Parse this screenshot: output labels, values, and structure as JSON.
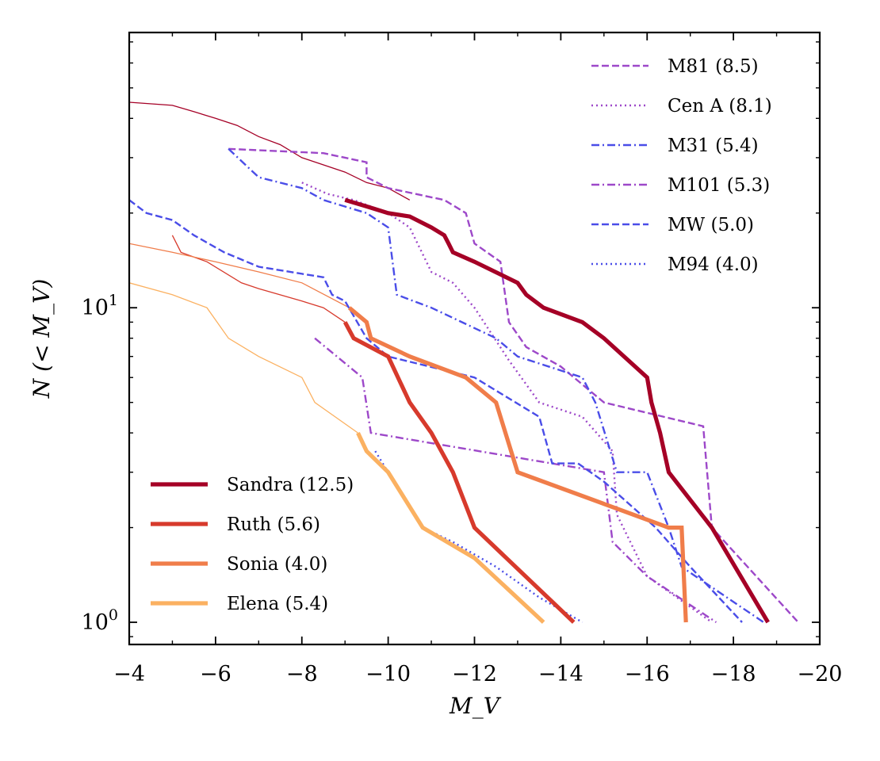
{
  "chart_data": {
    "type": "line",
    "xlabel": "M_V",
    "ylabel": "N (< M_V)",
    "x_reversed": true,
    "xlim": [
      -4,
      -20
    ],
    "y_scale": "log",
    "ylim": [
      0.85,
      75
    ],
    "x_ticks": [
      {
        "value": -4,
        "label": "−4"
      },
      {
        "value": -6,
        "label": "−6"
      },
      {
        "value": -8,
        "label": "−8"
      },
      {
        "value": -10,
        "label": "−10"
      },
      {
        "value": -12,
        "label": "−12"
      },
      {
        "value": -14,
        "label": "−14"
      },
      {
        "value": -16,
        "label": "−16"
      },
      {
        "value": -18,
        "label": "−18"
      },
      {
        "value": -20,
        "label": "−20"
      }
    ],
    "y_ticks": [
      {
        "value": 1,
        "label": "10",
        "exp": "0"
      },
      {
        "value": 10,
        "label": "10",
        "exp": "1"
      }
    ],
    "grid": false,
    "legends": [
      {
        "placement": "top-right",
        "entries": [
          "M81 (8.5)",
          "Cen A (8.1)",
          "M31 (5.4)",
          "M101 (5.3)",
          "MW (5.0)",
          "M94 (4.0)"
        ]
      },
      {
        "placement": "bottom-left",
        "entries": [
          "Sandra (12.5)",
          "Ruth (5.6)",
          "Sonia (4.0)",
          "Elena (5.4)"
        ]
      }
    ],
    "series": [
      {
        "name": "M81 (8.5)",
        "color": "#9d48c9",
        "dash": "dashed",
        "width": "thin",
        "points": [
          [
            -6.3,
            32
          ],
          [
            -8.5,
            31
          ],
          [
            -9.5,
            29
          ],
          [
            -9.5,
            26
          ],
          [
            -10,
            24
          ],
          [
            -11.3,
            22
          ],
          [
            -11.8,
            20
          ],
          [
            -12,
            16
          ],
          [
            -12.6,
            14
          ],
          [
            -12.8,
            9
          ],
          [
            -13.2,
            7.5
          ],
          [
            -14,
            6.5
          ],
          [
            -15,
            5
          ],
          [
            -17.3,
            4.2
          ],
          [
            -17.5,
            2
          ],
          [
            -19.5,
            1
          ]
        ]
      },
      {
        "name": "Cen A (8.1)",
        "color": "#9d48c9",
        "dash": "dotted",
        "width": "thin",
        "points": [
          [
            -8,
            25
          ],
          [
            -8.6,
            23
          ],
          [
            -9.2,
            22
          ],
          [
            -10,
            20
          ],
          [
            -10.5,
            18
          ],
          [
            -11,
            13
          ],
          [
            -11.5,
            12
          ],
          [
            -12,
            10
          ],
          [
            -12.8,
            6.8
          ],
          [
            -13.5,
            5
          ],
          [
            -14.5,
            4.5
          ],
          [
            -15.2,
            3.5
          ],
          [
            -15.3,
            2.2
          ],
          [
            -16,
            1.4
          ],
          [
            -17.5,
            1
          ]
        ]
      },
      {
        "name": "M31 (5.4)",
        "color": "#4a4de8",
        "dash": "dashdot",
        "width": "thin",
        "points": [
          [
            -6.3,
            32
          ],
          [
            -7,
            26
          ],
          [
            -8,
            24
          ],
          [
            -8.5,
            22
          ],
          [
            -9.5,
            20
          ],
          [
            -10,
            18
          ],
          [
            -10.2,
            11
          ],
          [
            -11,
            10
          ],
          [
            -12.5,
            8
          ],
          [
            -13,
            7
          ],
          [
            -14.5,
            6
          ],
          [
            -14.8,
            5
          ],
          [
            -15.3,
            3
          ],
          [
            -16,
            3
          ],
          [
            -16.5,
            2
          ],
          [
            -16.8,
            1.5
          ],
          [
            -18.7,
            1
          ]
        ]
      },
      {
        "name": "M101 (5.3)",
        "color": "#9d48c9",
        "dash": "dashdot",
        "width": "thin",
        "points": [
          [
            -8.3,
            8
          ],
          [
            -9.4,
            6
          ],
          [
            -9.6,
            4
          ],
          [
            -15,
            3
          ],
          [
            -15.2,
            1.8
          ],
          [
            -16,
            1.4
          ],
          [
            -17.6,
            1
          ]
        ]
      },
      {
        "name": "MW (5.0)",
        "color": "#4a4de8",
        "dash": "dashed",
        "width": "thin",
        "points": [
          [
            -4,
            22
          ],
          [
            -4.4,
            20
          ],
          [
            -5,
            19
          ],
          [
            -5.5,
            17
          ],
          [
            -6.2,
            15
          ],
          [
            -7,
            13.5
          ],
          [
            -8.5,
            12.5
          ],
          [
            -8.7,
            11
          ],
          [
            -9,
            10.5
          ],
          [
            -9.5,
            8
          ],
          [
            -10,
            7
          ],
          [
            -12,
            6
          ],
          [
            -13.5,
            4.5
          ],
          [
            -13.8,
            3.2
          ],
          [
            -14.4,
            3.2
          ],
          [
            -15,
            2.8
          ],
          [
            -16.2,
            2
          ],
          [
            -17,
            1.5
          ],
          [
            -18.2,
            1
          ]
        ]
      },
      {
        "name": "M94 (4.0)",
        "color": "#4a4de8",
        "dash": "dotted",
        "width": "thin",
        "points": [
          [
            -9.7,
            3.5
          ],
          [
            -10,
            3
          ],
          [
            -10.8,
            2
          ],
          [
            -11.5,
            1.8
          ],
          [
            -12.5,
            1.5
          ],
          [
            -13.5,
            1.2
          ],
          [
            -14.5,
            1
          ]
        ]
      },
      {
        "name": "Sandra (12.5)",
        "color": "#a50026",
        "dash": "solid",
        "width": "thick",
        "points": [
          [
            -9,
            22
          ],
          [
            -9.5,
            21
          ],
          [
            -10,
            20
          ],
          [
            -10.5,
            19.5
          ],
          [
            -11,
            18
          ],
          [
            -11.3,
            17
          ],
          [
            -11.4,
            16
          ],
          [
            -11.5,
            15
          ],
          [
            -12,
            14
          ],
          [
            -13,
            12
          ],
          [
            -13.2,
            11
          ],
          [
            -13.6,
            10
          ],
          [
            -14.5,
            9
          ],
          [
            -15,
            8
          ],
          [
            -16,
            6
          ],
          [
            -16.1,
            5
          ],
          [
            -16.3,
            4
          ],
          [
            -16.5,
            3
          ],
          [
            -17.5,
            2
          ],
          [
            -18.8,
            1
          ]
        ]
      },
      {
        "name": "Ruth (5.6)",
        "color": "#d73a2c",
        "dash": "solid",
        "width": "thick",
        "points": [
          [
            -9,
            9
          ],
          [
            -9.2,
            8
          ],
          [
            -10,
            7
          ],
          [
            -10.5,
            5
          ],
          [
            -11,
            4
          ],
          [
            -11.5,
            3
          ],
          [
            -12,
            2
          ],
          [
            -14.3,
            1
          ]
        ]
      },
      {
        "name": "Sonia (4.0)",
        "color": "#f07d4a",
        "dash": "solid",
        "width": "thick",
        "points": [
          [
            -9.1,
            10
          ],
          [
            -9.5,
            9
          ],
          [
            -9.6,
            8
          ],
          [
            -10.5,
            7
          ],
          [
            -11.8,
            6
          ],
          [
            -12.5,
            5
          ],
          [
            -13,
            3
          ],
          [
            -16.5,
            2
          ],
          [
            -16.8,
            2
          ],
          [
            -16.9,
            1
          ]
        ]
      },
      {
        "name": "Elena (5.4)",
        "color": "#fbb161",
        "dash": "solid",
        "width": "thick",
        "points": [
          [
            -9.3,
            4
          ],
          [
            -9.5,
            3.5
          ],
          [
            -10,
            3
          ],
          [
            -10.8,
            2
          ],
          [
            -12,
            1.6
          ],
          [
            -13.6,
            1
          ]
        ]
      },
      {
        "name": "",
        "color": "#a50026",
        "dash": "solid",
        "width": "hairline",
        "points": [
          [
            -4,
            45
          ],
          [
            -5,
            44
          ],
          [
            -5.5,
            42
          ],
          [
            -6,
            40
          ],
          [
            -6.5,
            38
          ],
          [
            -7,
            35
          ],
          [
            -7.5,
            33
          ],
          [
            -8,
            30
          ],
          [
            -9,
            27
          ],
          [
            -9.5,
            25
          ],
          [
            -10,
            24
          ],
          [
            -10.5,
            22
          ]
        ]
      },
      {
        "name": "",
        "color": "#d73a2c",
        "dash": "solid",
        "width": "hairline",
        "points": [
          [
            -5,
            17
          ],
          [
            -5.2,
            15
          ],
          [
            -5.8,
            14
          ],
          [
            -6.6,
            12
          ],
          [
            -7,
            11.5
          ],
          [
            -8,
            10.5
          ],
          [
            -8.5,
            10
          ],
          [
            -9,
            9
          ]
        ]
      },
      {
        "name": "",
        "color": "#f07d4a",
        "dash": "solid",
        "width": "hairline",
        "points": [
          [
            -4,
            16
          ],
          [
            -5,
            15
          ],
          [
            -6,
            14
          ],
          [
            -7,
            13
          ],
          [
            -8,
            12
          ],
          [
            -9.1,
            10
          ]
        ]
      },
      {
        "name": "",
        "color": "#fbb161",
        "dash": "solid",
        "width": "hairline",
        "points": [
          [
            -4,
            12
          ],
          [
            -5,
            11
          ],
          [
            -5.8,
            10
          ],
          [
            -6.3,
            8
          ],
          [
            -7,
            7
          ],
          [
            -8,
            6
          ],
          [
            -8.3,
            5
          ],
          [
            -9.3,
            4
          ]
        ]
      }
    ]
  }
}
